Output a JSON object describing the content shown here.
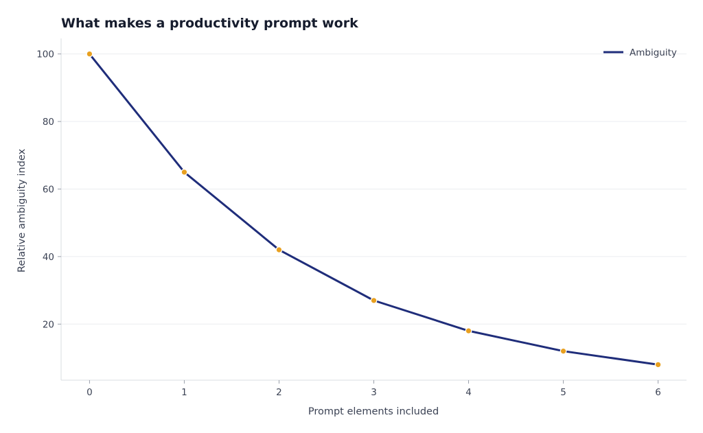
{
  "chart_data": {
    "type": "line",
    "title": "What makes a productivity prompt work",
    "xlabel": "Prompt elements included",
    "ylabel": "Relative ambiguity index",
    "x": [
      0,
      1,
      2,
      3,
      4,
      5,
      6
    ],
    "xlim": [
      -0.3,
      6.3
    ],
    "ylim": [
      3.4,
      104.6
    ],
    "x_ticks": [
      0,
      1,
      2,
      3,
      4,
      5,
      6
    ],
    "y_ticks": [
      20,
      40,
      60,
      80,
      100
    ],
    "grid": true,
    "legend_position": "top-right",
    "series": [
      {
        "name": "Ambiguity",
        "values": [
          100,
          65,
          42,
          27,
          18,
          12,
          8
        ],
        "line_color": "#1f2d7a",
        "marker_color": "#e8a020"
      }
    ]
  }
}
